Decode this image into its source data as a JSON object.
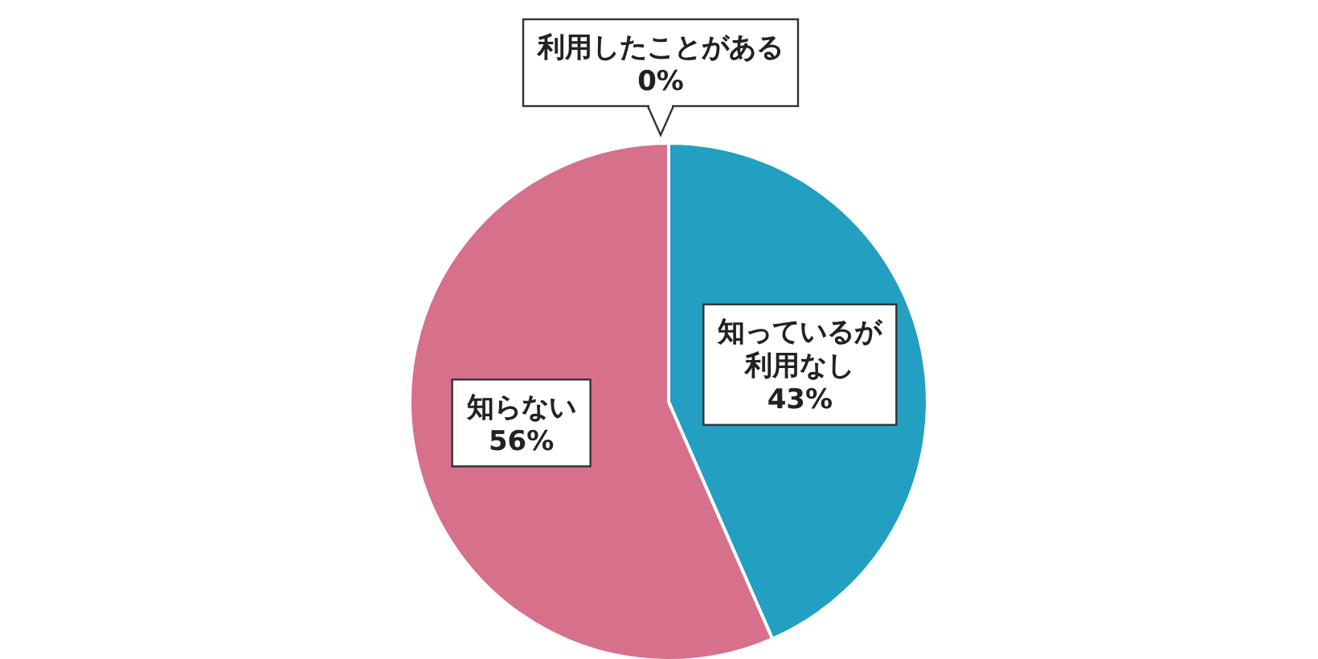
{
  "chart_data": {
    "type": "pie",
    "categories": [
      "利用したことがある",
      "知っているが利用なし",
      "知らない"
    ],
    "values": [
      0,
      43,
      56
    ],
    "colors": [
      "#f0b030",
      "#229fc1",
      "#d6708b"
    ],
    "value_labels": [
      "0%",
      "43%",
      "56%"
    ],
    "legend": false
  }
}
